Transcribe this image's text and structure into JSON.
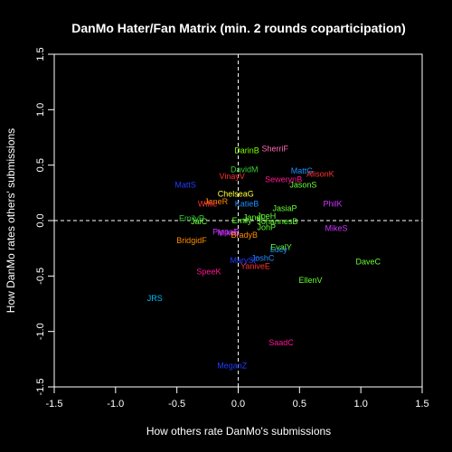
{
  "chart_data": {
    "type": "scatter",
    "title": "DanMo Hater/Fan Matrix (min. 2 rounds coparticipation)",
    "xlabel": "How others rate DanMo's submissions",
    "ylabel": "How DanMo rates others' submissions",
    "xlim": [
      -1.5,
      1.5
    ],
    "ylim": [
      -1.5,
      1.5
    ],
    "xticks": [
      "-1.5",
      "-1.0",
      "-0.5",
      "0.0",
      "0.5",
      "1.0",
      "1.5"
    ],
    "yticks": [
      "-1.5",
      "-1.0",
      "-0.5",
      "0.0",
      "0.5",
      "1.0",
      "1.5"
    ],
    "reference_lines": {
      "x": 0,
      "y": 0,
      "style": "dashed"
    },
    "background": "#000000",
    "foreground": "#ffffff",
    "points": [
      {
        "label": "DarinB",
        "x": 0.07,
        "y": 0.63,
        "color": "#7fff00"
      },
      {
        "label": "SherriF",
        "x": 0.3,
        "y": 0.65,
        "color": "#ff69b4"
      },
      {
        "label": "DavidM",
        "x": 0.05,
        "y": 0.46,
        "color": "#32cd32"
      },
      {
        "label": "MattG",
        "x": 0.52,
        "y": 0.45,
        "color": "#1e90ff"
      },
      {
        "label": "AlisonK",
        "x": 0.67,
        "y": 0.42,
        "color": "#ff3030"
      },
      {
        "label": "VinayV",
        "x": -0.05,
        "y": 0.4,
        "color": "#ff3030"
      },
      {
        "label": "SewerynB",
        "x": 0.37,
        "y": 0.37,
        "color": "#ff1493"
      },
      {
        "label": "MattS",
        "x": -0.43,
        "y": 0.32,
        "color": "#1e3cff"
      },
      {
        "label": "JasonS",
        "x": 0.53,
        "y": 0.32,
        "color": "#66ff33"
      },
      {
        "label": "ChelseaG",
        "x": -0.02,
        "y": 0.24,
        "color": "#ffff33"
      },
      {
        "label": "JaneR",
        "x": -0.18,
        "y": 0.17,
        "color": "#ff8c00"
      },
      {
        "label": "Willie",
        "x": -0.25,
        "y": 0.15,
        "color": "#ff3030"
      },
      {
        "label": "KatieB",
        "x": 0.07,
        "y": 0.15,
        "color": "#1e90ff"
      },
      {
        "label": "PhilK",
        "x": 0.77,
        "y": 0.15,
        "color": "#cc33ff"
      },
      {
        "label": "JasiaP",
        "x": 0.38,
        "y": 0.11,
        "color": "#66ff33"
      },
      {
        "label": "JoeH",
        "x": 0.23,
        "y": 0.04,
        "color": "#66ff33"
      },
      {
        "label": "JaneL",
        "x": 0.13,
        "y": 0.03,
        "color": "#66ff33"
      },
      {
        "label": "EmilyP",
        "x": -0.38,
        "y": 0.02,
        "color": "#32cd32"
      },
      {
        "label": "Emily",
        "x": 0.03,
        "y": 0.0,
        "color": "#66ff33"
      },
      {
        "label": "JohannesB",
        "x": 0.32,
        "y": -0.01,
        "color": "#66ff33"
      },
      {
        "label": "JaiC",
        "x": -0.32,
        "y": -0.01,
        "color": "#66ff33"
      },
      {
        "label": "JohP",
        "x": 0.23,
        "y": -0.06,
        "color": "#66ff33"
      },
      {
        "label": "MikeS",
        "x": 0.8,
        "y": -0.07,
        "color": "#cc33ff"
      },
      {
        "label": "PippaR",
        "x": -0.1,
        "y": -0.1,
        "color": "#cc33ff"
      },
      {
        "label": "MikeL",
        "x": -0.08,
        "y": -0.11,
        "color": "#cc33ff"
      },
      {
        "label": "BradyB",
        "x": 0.05,
        "y": -0.13,
        "color": "#ff8c00"
      },
      {
        "label": "BridgidF",
        "x": -0.38,
        "y": -0.18,
        "color": "#ff8c00"
      },
      {
        "label": "EvalY",
        "x": 0.35,
        "y": -0.24,
        "color": "#66ff33"
      },
      {
        "label": "Lucy",
        "x": 0.33,
        "y": -0.26,
        "color": "#1e90ff"
      },
      {
        "label": "JoshC",
        "x": 0.2,
        "y": -0.34,
        "color": "#1e90ff"
      },
      {
        "label": "MarySF",
        "x": 0.05,
        "y": -0.36,
        "color": "#1e3cff"
      },
      {
        "label": "DaveC",
        "x": 1.06,
        "y": -0.37,
        "color": "#66ff33"
      },
      {
        "label": "YaniveE",
        "x": 0.14,
        "y": -0.41,
        "color": "#ff3030"
      },
      {
        "label": "SpeeK",
        "x": -0.24,
        "y": -0.46,
        "color": "#ff1493"
      },
      {
        "label": "EllenV",
        "x": 0.59,
        "y": -0.54,
        "color": "#66ff33"
      },
      {
        "label": "JRS",
        "x": -0.68,
        "y": -0.7,
        "color": "#00bfff"
      },
      {
        "label": "SaadC",
        "x": 0.35,
        "y": -1.1,
        "color": "#ff1493"
      },
      {
        "label": "MeganZ",
        "x": -0.05,
        "y": -1.31,
        "color": "#1e3cff"
      }
    ]
  }
}
